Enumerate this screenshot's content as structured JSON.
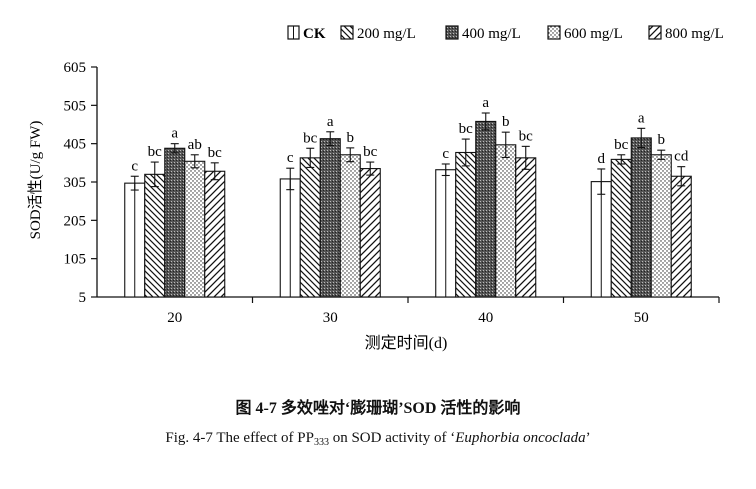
{
  "colors": {
    "ink": "#111111",
    "dark_fill": "#555555",
    "background": "#ffffff"
  },
  "chart_data": {
    "type": "bar",
    "title": "",
    "xlabel": "测定时间(d)",
    "ylabel": "SOD活性(U/g FW)",
    "categories": [
      "20",
      "30",
      "40",
      "50"
    ],
    "ylim": [
      5,
      605
    ],
    "yticks": [
      5,
      105,
      205,
      305,
      405,
      505,
      605
    ],
    "legend": {
      "position": "top-right"
    },
    "series": [
      {
        "name": "CK",
        "pattern": "open",
        "values": [
          302,
          313,
          337,
          306
        ],
        "errors": [
          18,
          28,
          15,
          33
        ],
        "letters": [
          "c",
          "c",
          "c",
          "d"
        ]
      },
      {
        "name": "200 mg/L",
        "pattern": "back-diagonal",
        "values": [
          325,
          368,
          382,
          364
        ],
        "errors": [
          32,
          25,
          35,
          12
        ],
        "letters": [
          "bc",
          "bc",
          "bc",
          "bc"
        ]
      },
      {
        "name": "400 mg/L",
        "pattern": "dark-stipple",
        "values": [
          393,
          418,
          463,
          420
        ],
        "errors": [
          12,
          18,
          22,
          25
        ],
        "letters": [
          "a",
          "a",
          "a",
          "a"
        ]
      },
      {
        "name": "600 mg/L",
        "pattern": "dotted",
        "values": [
          359,
          376,
          402,
          376
        ],
        "errors": [
          17,
          18,
          33,
          12
        ],
        "letters": [
          "ab",
          "b",
          "b",
          "b"
        ]
      },
      {
        "name": "800 mg/L",
        "pattern": "cross-diagonal",
        "values": [
          333,
          340,
          368,
          320
        ],
        "errors": [
          22,
          17,
          30,
          25
        ],
        "letters": [
          "bc",
          "bc",
          "bc",
          "cd"
        ]
      }
    ]
  },
  "caption": {
    "cn": "图 4-7  多效唑对‘膨珊瑚’SOD 活性的影响",
    "en_prefix": "Fig. 4-7 The effect of PP",
    "en_sub": "333",
    "en_middle": " on SOD activity of ‘",
    "en_species": "Euphorbia oncoclada",
    "en_suffix": "’"
  }
}
